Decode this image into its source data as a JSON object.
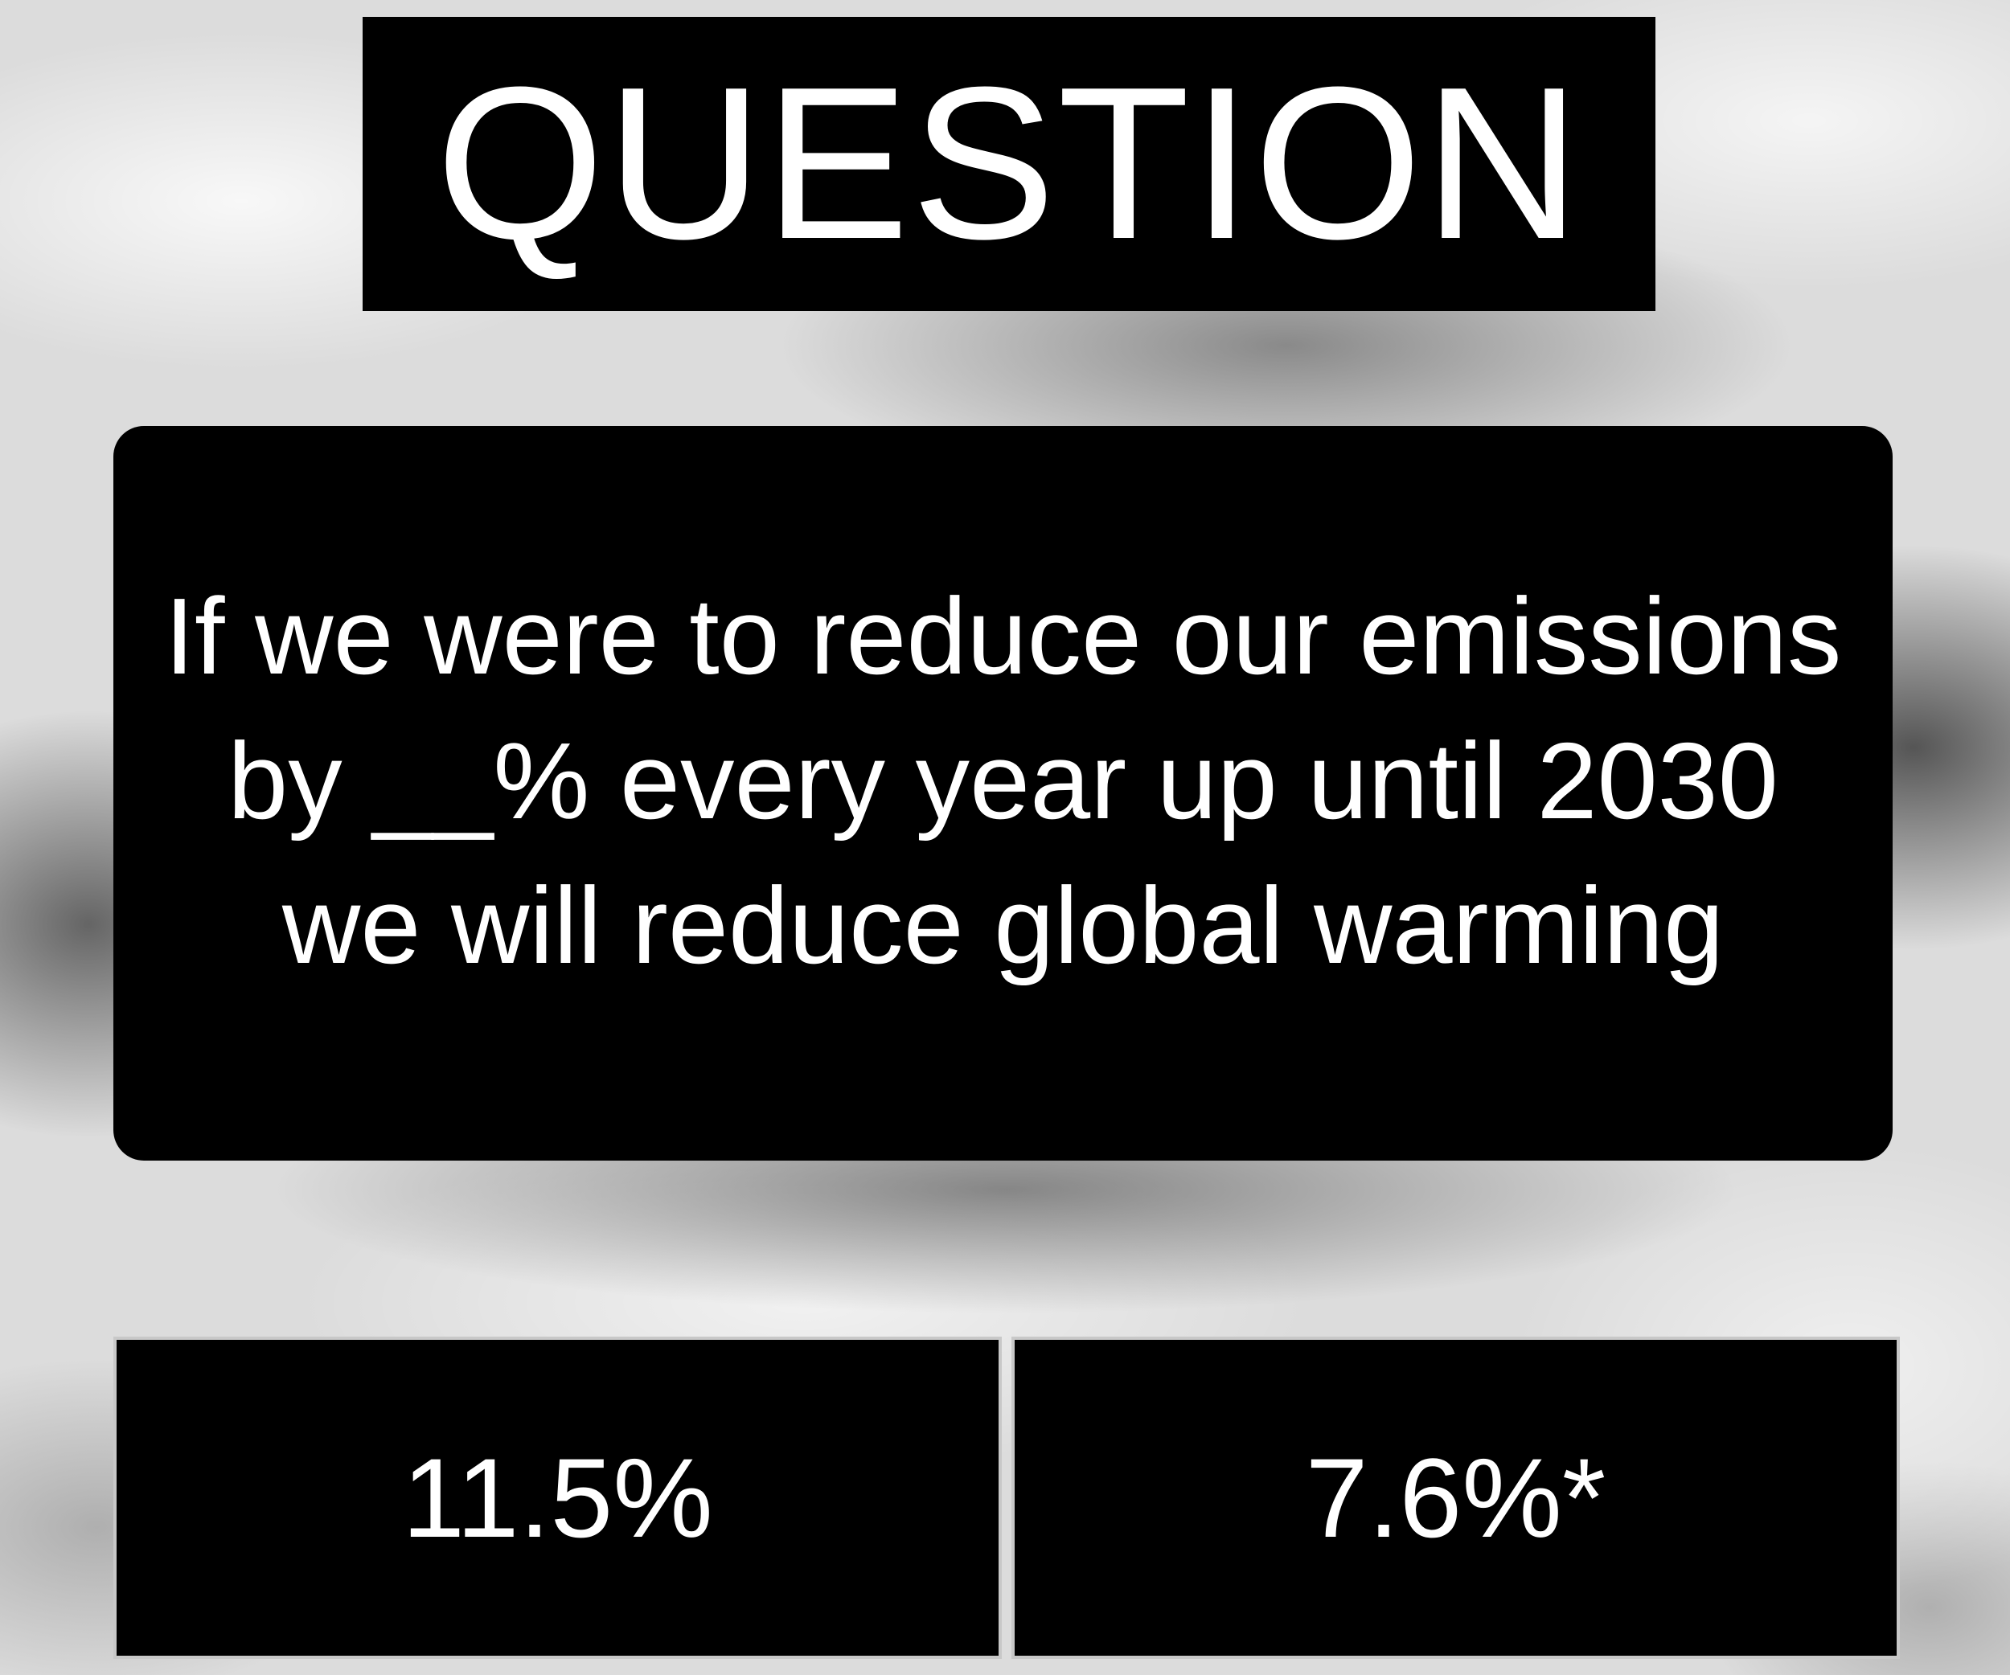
{
  "title": "QUESTION",
  "question": "If we were to reduce our emissions by __% every year up until 2030 we will reduce global warming",
  "answers": [
    {
      "label": "11.5%"
    },
    {
      "label": "7.6%*"
    }
  ]
}
